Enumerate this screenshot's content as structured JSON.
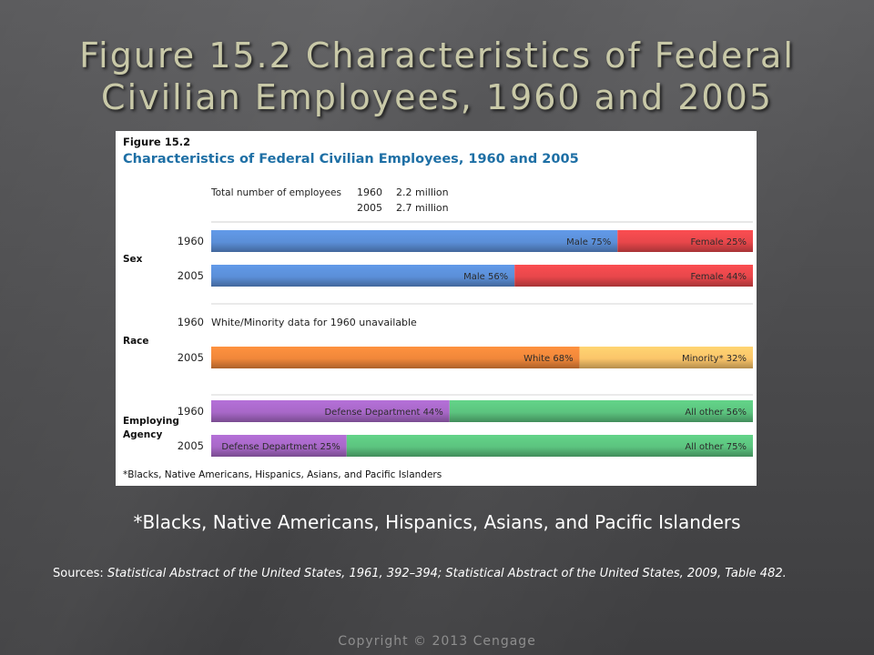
{
  "slide": {
    "title_line1": "Figure 15.2 Characteristics of Federal",
    "title_line2": "Civilian Employees, 1960 and 2005",
    "footnote": "*Blacks, Native Americans, Hispanics, Asians, and Pacific Islanders",
    "sources_label": "Sources:",
    "sources_text": "Statistical Abstract of the United States, 1961, 392–394; Statistical Abstract of the United States, 2009, Table 482.",
    "copyright": "Copyright © 2013 Cengage"
  },
  "chart_data": {
    "type": "bar",
    "orientation": "horizontal-stacked-100",
    "figure_label": "Figure 15.2",
    "title": "Characteristics of Federal Civilian Employees, 1960 and 2005",
    "totals_label": "Total number of employees",
    "totals": [
      {
        "year": "1960",
        "value": "2.2 million"
      },
      {
        "year": "2005",
        "value": "2.7 million"
      }
    ],
    "groups": [
      {
        "label": "Sex",
        "rows": [
          {
            "year": "1960",
            "segments": [
              {
                "name": "Male",
                "value": 75,
                "label": "Male 75%",
                "color": "#5b8fd8"
              },
              {
                "name": "Female",
                "value": 25,
                "label": "Female 25%",
                "color": "#e8474b"
              }
            ]
          },
          {
            "year": "2005",
            "segments": [
              {
                "name": "Male",
                "value": 56,
                "label": "Male 56%",
                "color": "#5b8fd8"
              },
              {
                "name": "Female",
                "value": 44,
                "label": "Female 44%",
                "color": "#e8474b"
              }
            ]
          }
        ]
      },
      {
        "label": "Race",
        "rows": [
          {
            "year": "1960",
            "note": "White/Minority data for 1960 unavailable",
            "segments": []
          },
          {
            "year": "2005",
            "segments": [
              {
                "name": "White",
                "value": 68,
                "label": "White 68%",
                "color": "#f0873a"
              },
              {
                "name": "Minority*",
                "value": 32,
                "label": "Minority* 32%",
                "color": "#fbc56a"
              }
            ]
          }
        ]
      },
      {
        "label": "Employing Agency",
        "rows": [
          {
            "year": "1960",
            "segments": [
              {
                "name": "Defense Department",
                "value": 44,
                "label": "Defense Department 44%",
                "color": "#a868c8"
              },
              {
                "name": "All other",
                "value": 56,
                "label": "All other 56%",
                "color": "#5cc47f"
              }
            ]
          },
          {
            "year": "2005",
            "segments": [
              {
                "name": "Defense Department",
                "value": 25,
                "label": "Defense Department 25%",
                "color": "#a868c8"
              },
              {
                "name": "All other",
                "value": 75,
                "label": "All other 75%",
                "color": "#5cc47f"
              }
            ]
          }
        ]
      }
    ],
    "footnote": "*Blacks, Native Americans, Hispanics, Asians, and Pacific Islanders",
    "xlim": [
      0,
      100
    ],
    "grid": false,
    "legend": "none",
    "title_color": "#1e6fa5"
  }
}
